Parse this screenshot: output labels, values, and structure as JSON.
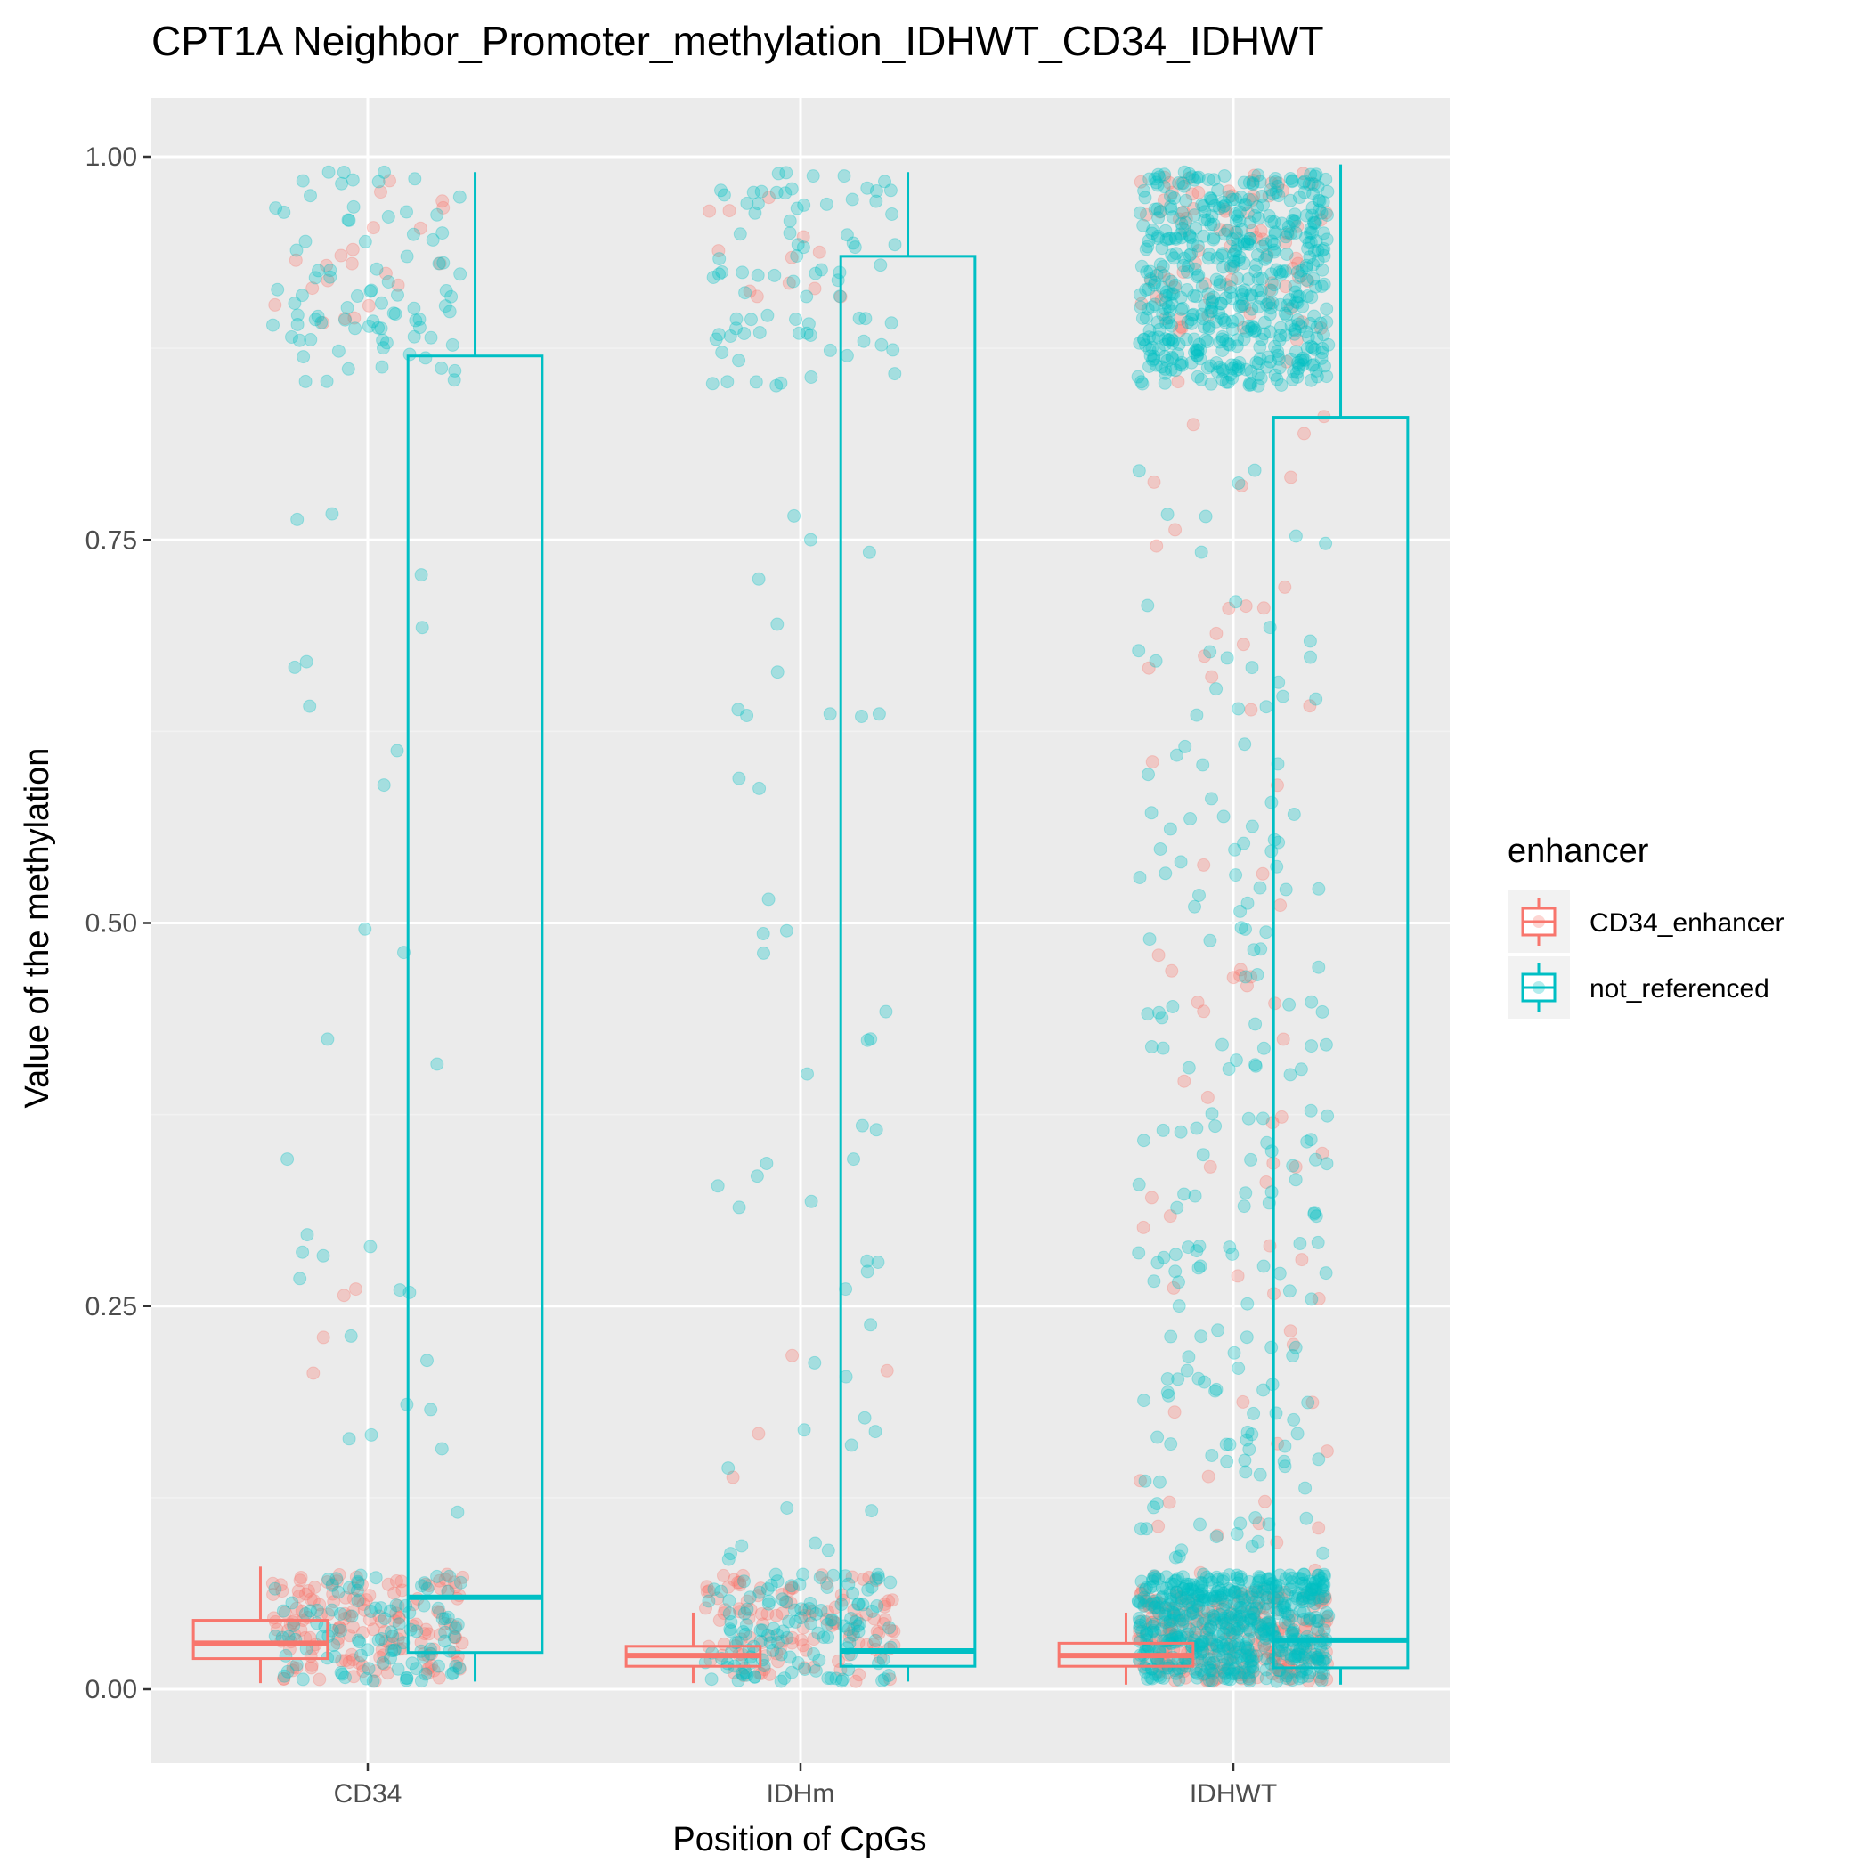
{
  "chart_data": {
    "type": "box",
    "title": "CPT1A Neighbor_Promoter_methylation_IDHWT_CD34_IDHWT",
    "xlabel": "Position of CpGs",
    "ylabel": "Value of the methylation",
    "categories": [
      "CD34",
      "IDHm",
      "IDHWT"
    ],
    "yticks": [
      0.0,
      0.25,
      0.5,
      0.75,
      1.0
    ],
    "ytick_labels": [
      "0.00",
      "0.25",
      "0.50",
      "0.75",
      "1.00"
    ],
    "ylim": [
      -0.04,
      1.04
    ],
    "grid": true,
    "jitter_points": true,
    "legend": {
      "title": "enhancer",
      "position": "right",
      "entries": [
        {
          "label": "CD34_enhancer",
          "color": "#F8766D"
        },
        {
          "label": "not_referenced",
          "color": "#00BFC4"
        }
      ]
    },
    "series": [
      {
        "name": "CD34_enhancer",
        "color": "#F8766D",
        "boxes": [
          {
            "category": "CD34",
            "whisker_low": 0.004,
            "q1": 0.02,
            "median": 0.03,
            "q3": 0.045,
            "whisker_high": 0.08
          },
          {
            "category": "IDHm",
            "whisker_low": 0.004,
            "q1": 0.015,
            "median": 0.022,
            "q3": 0.028,
            "whisker_high": 0.05
          },
          {
            "category": "IDHWT",
            "whisker_low": 0.003,
            "q1": 0.015,
            "median": 0.022,
            "q3": 0.03,
            "whisker_high": 0.05
          }
        ]
      },
      {
        "name": "not_referenced",
        "color": "#00BFC4",
        "boxes": [
          {
            "category": "CD34",
            "whisker_low": 0.005,
            "q1": 0.024,
            "median": 0.06,
            "q3": 0.87,
            "whisker_high": 0.99
          },
          {
            "category": "IDHm",
            "whisker_low": 0.005,
            "q1": 0.015,
            "median": 0.025,
            "q3": 0.935,
            "whisker_high": 0.99
          },
          {
            "category": "IDHWT",
            "whisker_low": 0.003,
            "q1": 0.014,
            "median": 0.032,
            "q3": 0.83,
            "whisker_high": 0.995
          }
        ]
      }
    ]
  },
  "colors": {
    "panel_background": "#EBEBEB",
    "grid_major": "#FFFFFF",
    "grid_minor": "#F2F2F2",
    "enhancer": "#F8766D",
    "not_referenced": "#00BFC4"
  }
}
